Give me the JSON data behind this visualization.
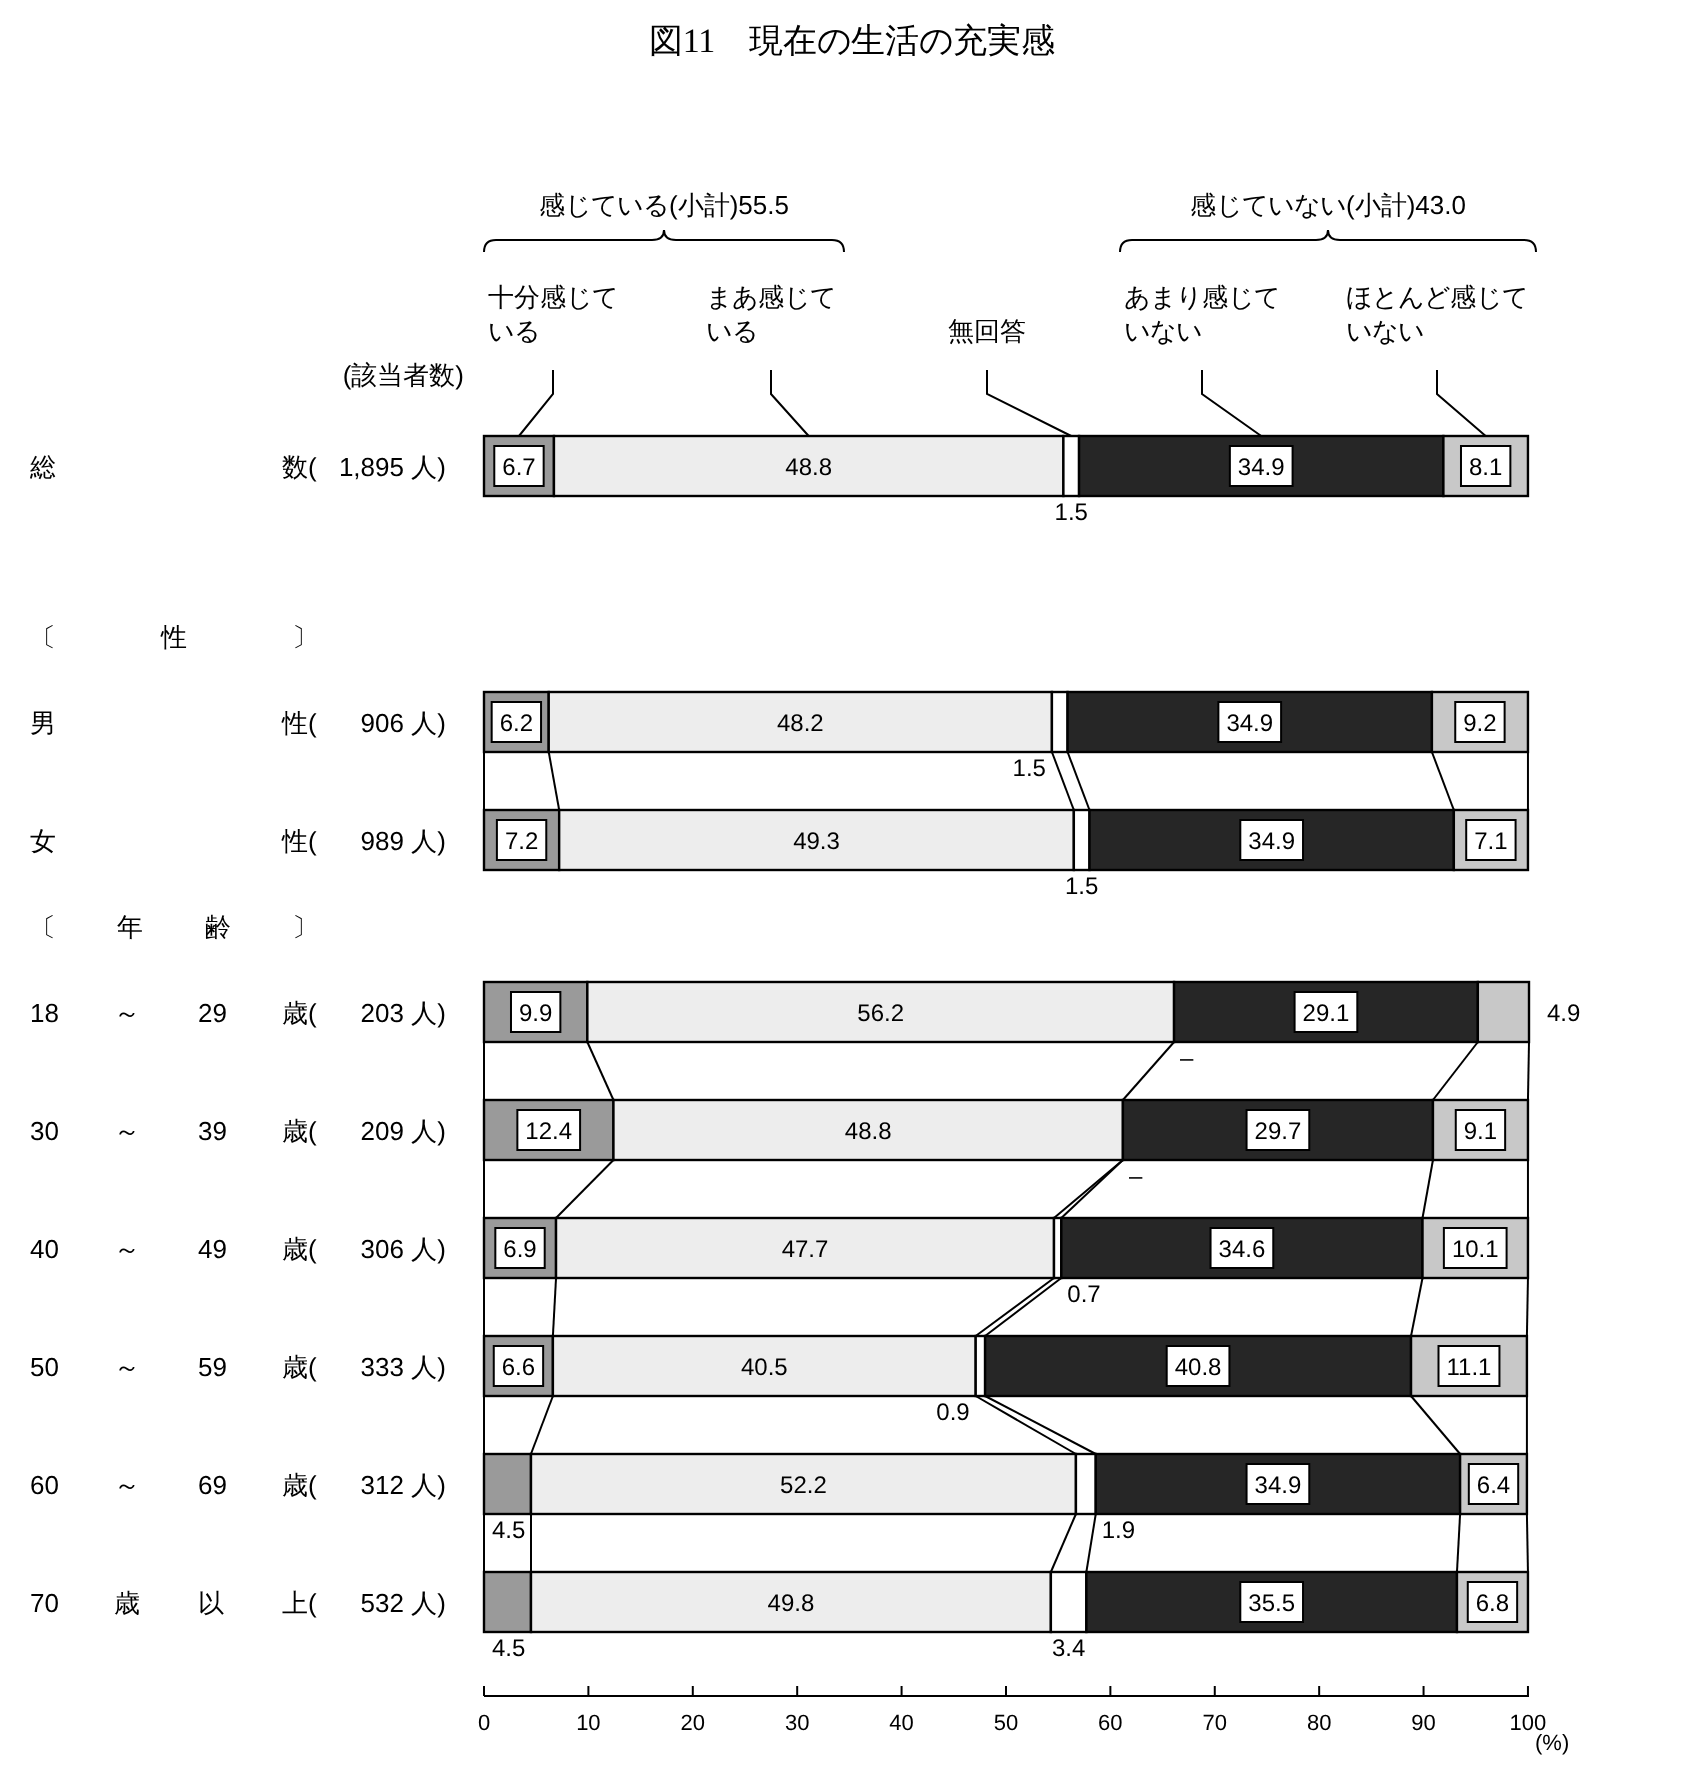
{
  "chart_data": [
    {
      "type": "bar",
      "orientation": "horizontal",
      "stacked": true,
      "title": "図11　現在の生活の充実感",
      "ylabel": "(該当者数)",
      "categories": [
        "総 数( 1,895 人)"
      ],
      "series": [
        {
          "name": "十分感じている",
          "color": "#9a9a9a",
          "values": [
            6.7
          ]
        },
        {
          "name": "まあ感じている",
          "color": "#ededed",
          "values": [
            48.8
          ]
        },
        {
          "name": "無回答",
          "color": "#ffffff",
          "values": [
            1.5
          ]
        },
        {
          "name": "あまり感じていない",
          "color": "#262626",
          "values": [
            34.9
          ]
        },
        {
          "name": "ほとんど感じていない",
          "color": "#c8c8c8",
          "values": [
            8.1
          ]
        }
      ],
      "xlim": [
        0,
        100.1
      ],
      "tick_labels": "y",
      "data_labels": true,
      "legend": "top",
      "annotations": [
        "感じている(小計)55.5",
        "感じていない(小計)43.0"
      ]
    },
    {
      "type": "bar",
      "orientation": "horizontal",
      "stacked": true,
      "title": "〔 性 〕",
      "categories": [
        "男 性( 906 人)",
        "女 性( 989 人)"
      ],
      "series": [
        {
          "color": "#9a9a9a",
          "values": [
            6.2,
            7.2
          ]
        },
        {
          "color": "#ededed",
          "values": [
            48.2,
            49.3
          ]
        },
        {
          "color": "#ffffff",
          "values": [
            1.5,
            1.5
          ]
        },
        {
          "color": "#262626",
          "values": [
            34.9,
            34.9
          ]
        },
        {
          "color": "#c8c8c8",
          "values": [
            9.2,
            7.1
          ]
        }
      ],
      "xlim": [
        0,
        100.1
      ],
      "tick_labels": "y",
      "data_labels": true
    },
    {
      "type": "bar",
      "orientation": "horizontal",
      "stacked": true,
      "title": "〔 年 齢 〕",
      "xlabel": "(%)",
      "categories": [
        "18 ～ 29 歳( 203 人)",
        "30 ～ 39 歳( 209 人)",
        "40 ～ 49 歳( 306 人)",
        "50 ～ 59 歳( 333 人)",
        "60 ～ 69 歳( 312 人)",
        "70 歳 以 上( 532 人)"
      ],
      "series": [
        {
          "color": "#9a9a9a",
          "values": [
            9.9,
            12.4,
            6.9,
            6.6,
            4.5,
            4.5
          ]
        },
        {
          "color": "#ededed",
          "values": [
            56.2,
            48.8,
            47.7,
            40.5,
            52.2,
            49.8
          ]
        },
        {
          "color": "#ffffff",
          "values": [
            null,
            null,
            0.7,
            0.9,
            1.9,
            3.4
          ],
          "value_labels": [
            "–",
            "–",
            "0.7",
            "0.9",
            "1.9",
            "3.4"
          ]
        },
        {
          "color": "#262626",
          "values": [
            29.1,
            29.7,
            34.6,
            40.8,
            34.9,
            35.5
          ]
        },
        {
          "color": "#c8c8c8",
          "values": [
            4.9,
            9.1,
            10.1,
            11.1,
            6.4,
            6.8
          ]
        }
      ],
      "xlim": [
        0,
        100.1
      ],
      "xticks": [
        0,
        10,
        20,
        30,
        40,
        50,
        60,
        70,
        80,
        90,
        100
      ],
      "data_labels": true
    }
  ]
}
